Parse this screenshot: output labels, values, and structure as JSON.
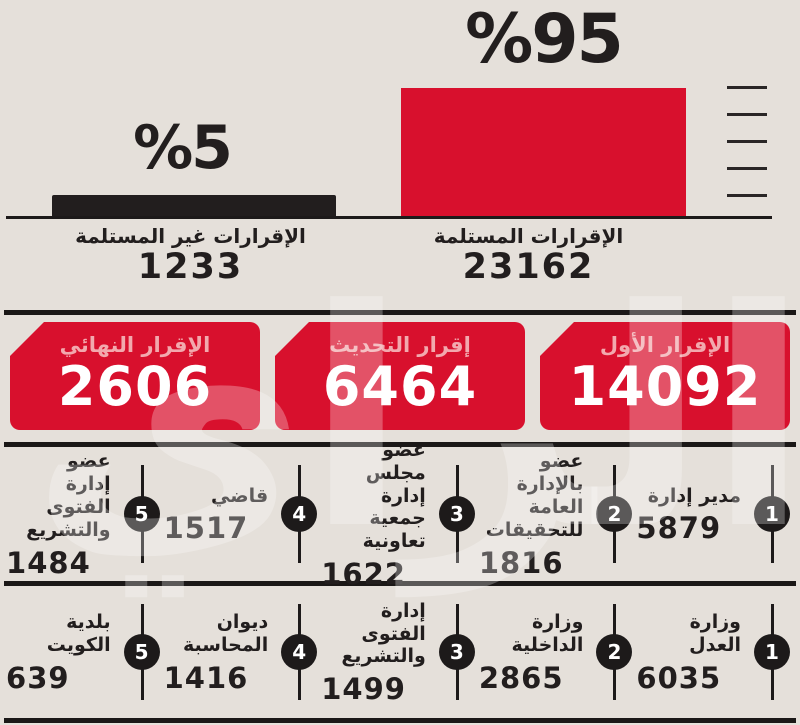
{
  "colors": {
    "background": "#e5e0da",
    "red": "#d8102d",
    "dark": "#221e1e",
    "pink_label": "#f2a9ae"
  },
  "chart_data": {
    "type": "bar",
    "title": "",
    "categories": [
      "الإقرارات المستلمة",
      "الإقرارات غير المستلمة"
    ],
    "values": [
      23162,
      1233
    ],
    "percent_labels": [
      "%95",
      "%5"
    ],
    "bar_colors": [
      "#d8102d",
      "#221e1e"
    ],
    "orientation": "vertical",
    "legend": "none",
    "axis_note": "baseline only, 5 short tick dashes stacked at right side"
  },
  "banners": [
    {
      "label": "الإقرار الأول",
      "value": "14092"
    },
    {
      "label": "إقرار التحديث",
      "value": "6464"
    },
    {
      "label": "الإقرار النهائي",
      "value": "2606"
    }
  ],
  "positions": [
    {
      "rank": "1",
      "label": "مدير إدارة",
      "value": "5879"
    },
    {
      "rank": "2",
      "label": "عضو\nبالإدارة العامة\nللتحقيقات",
      "value": "1816"
    },
    {
      "rank": "3",
      "label": "عضو\nمجلس إدارة\nجمعية تعاونية",
      "value": "1622"
    },
    {
      "rank": "4",
      "label": "قاضي",
      "value": "1517"
    },
    {
      "rank": "5",
      "label": "عضو\nإدارة الفتوى\nوالتشريع",
      "value": "1484"
    }
  ],
  "entities": [
    {
      "rank": "1",
      "label": "وزارة\nالعدل",
      "value": "6035"
    },
    {
      "rank": "2",
      "label": "وزارة\nالداخلية",
      "value": "2865"
    },
    {
      "rank": "3",
      "label": "إدارة\nالفتوى والتشريع",
      "value": "1499"
    },
    {
      "rank": "4",
      "label": "ديوان\nالمحاسبة",
      "value": "1416"
    },
    {
      "rank": "5",
      "label": "بلدية\nالكويت",
      "value": "639"
    }
  ],
  "watermark": "الراي"
}
